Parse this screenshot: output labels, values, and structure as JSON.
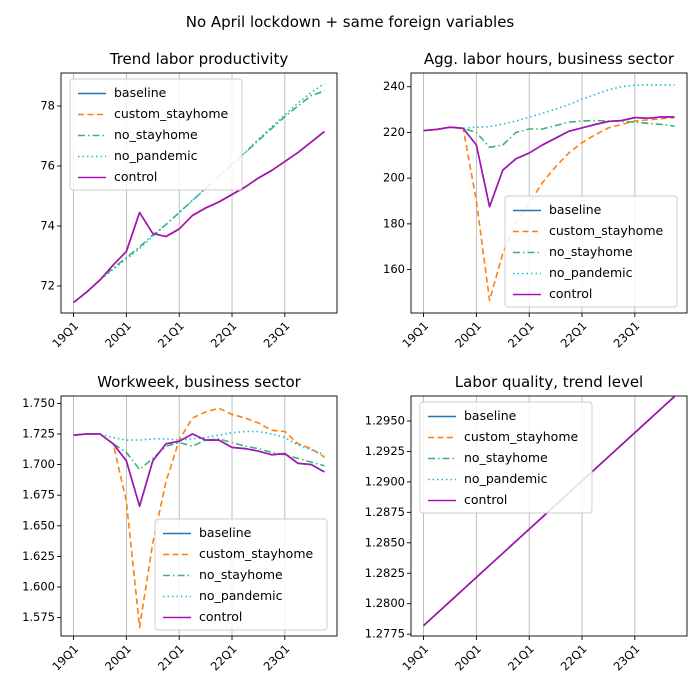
{
  "figure": {
    "suptitle": "No April lockdown + same foreign variables"
  },
  "colors": {
    "baseline": "#1f77b4",
    "custom_stayhome": "#ff7f0e",
    "no_stayhome": "#3cb371",
    "no_pandemic": "#17becf",
    "control": "#aa10b4",
    "grid": "#b0b0b0"
  },
  "chart_data": [
    {
      "type": "line",
      "title": "Trend labor productivity",
      "x": [
        0,
        1,
        2,
        3,
        4,
        5,
        6,
        7,
        8,
        9,
        10,
        11,
        12,
        13,
        14,
        15,
        16,
        17,
        18,
        19
      ],
      "xticks": [
        0,
        4,
        8,
        12,
        16
      ],
      "xtick_labels": [
        "19Q1",
        "20Q1",
        "21Q1",
        "22Q1",
        "23Q1"
      ],
      "xlim": [
        -0.95,
        19.95
      ],
      "ylim": [
        71.1,
        79.1
      ],
      "yticks": [
        72,
        74,
        76,
        78
      ],
      "ytick_labels": [
        "72",
        "74",
        "76",
        "78"
      ],
      "grid": "x",
      "legend": "upper left",
      "series": [
        {
          "name": "baseline",
          "style": "solid",
          "values": [
            71.45,
            71.8,
            72.2,
            72.7,
            73.15,
            74.45,
            73.75,
            73.65,
            73.9,
            74.35,
            74.6,
            74.8,
            75.05,
            75.3,
            75.6,
            75.85,
            76.15,
            76.45,
            76.8,
            77.15
          ]
        },
        {
          "name": "custom_stayhome",
          "style": "dashed",
          "values": [
            71.45,
            71.8,
            72.2,
            72.7,
            73.15,
            74.45,
            73.75,
            73.65,
            73.9,
            74.35,
            74.6,
            74.8,
            75.05,
            75.3,
            75.6,
            75.85,
            76.15,
            76.45,
            76.8,
            77.15
          ]
        },
        {
          "name": "no_stayhome",
          "style": "dashdot",
          "values": [
            71.45,
            71.8,
            72.2,
            72.6,
            72.95,
            73.3,
            73.7,
            74.05,
            74.45,
            74.85,
            75.25,
            75.65,
            76.05,
            76.45,
            76.85,
            77.25,
            77.65,
            78.0,
            78.35,
            78.5
          ]
        },
        {
          "name": "no_pandemic",
          "style": "dotted",
          "values": [
            71.45,
            71.8,
            72.2,
            72.55,
            72.9,
            73.25,
            73.65,
            74.05,
            74.45,
            74.85,
            75.25,
            75.65,
            76.05,
            76.45,
            76.9,
            77.3,
            77.7,
            78.1,
            78.45,
            78.75
          ]
        },
        {
          "name": "control",
          "style": "solid",
          "values": [
            71.45,
            71.8,
            72.2,
            72.7,
            73.15,
            74.45,
            73.75,
            73.65,
            73.9,
            74.35,
            74.6,
            74.8,
            75.05,
            75.3,
            75.6,
            75.85,
            76.15,
            76.45,
            76.8,
            77.15
          ]
        }
      ]
    },
    {
      "type": "line",
      "title": "Agg. labor hours, business sector",
      "x": [
        0,
        1,
        2,
        3,
        4,
        5,
        6,
        7,
        8,
        9,
        10,
        11,
        12,
        13,
        14,
        15,
        16,
        17,
        18,
        19
      ],
      "xticks": [
        0,
        4,
        8,
        12,
        16
      ],
      "xtick_labels": [
        "19Q1",
        "20Q1",
        "21Q1",
        "22Q1",
        "23Q1"
      ],
      "xlim": [
        -0.95,
        19.95
      ],
      "ylim": [
        141,
        246
      ],
      "yticks": [
        160,
        180,
        200,
        220,
        240
      ],
      "ytick_labels": [
        "160",
        "180",
        "200",
        "220",
        "240"
      ],
      "grid": "x",
      "legend": "lower right",
      "series": [
        {
          "name": "baseline",
          "style": "solid",
          "values": [
            220.8,
            221.3,
            222.3,
            221.8,
            214.5,
            187.5,
            203.5,
            208.5,
            211.0,
            214.5,
            217.5,
            220.5,
            222.0,
            223.5,
            224.8,
            225.2,
            226.5,
            226.2,
            226.8,
            226.8
          ]
        },
        {
          "name": "custom_stayhome",
          "style": "dashed",
          "values": [
            220.8,
            221.3,
            222.3,
            221.8,
            190.0,
            146.5,
            167.0,
            180.5,
            189.0,
            198.0,
            205.0,
            211.0,
            215.5,
            219.0,
            222.0,
            223.5,
            225.0,
            225.5,
            226.0,
            226.5
          ]
        },
        {
          "name": "no_stayhome",
          "style": "dashdot",
          "values": [
            220.8,
            221.3,
            222.3,
            221.8,
            220.0,
            213.5,
            214.5,
            220.0,
            221.5,
            221.5,
            223.0,
            224.5,
            225.0,
            225.2,
            225.0,
            224.8,
            224.5,
            224.0,
            223.5,
            222.8
          ]
        },
        {
          "name": "no_pandemic",
          "style": "dotted",
          "values": [
            220.8,
            221.3,
            222.3,
            221.8,
            222.3,
            222.5,
            223.7,
            225.0,
            226.7,
            228.3,
            230.2,
            232.2,
            234.5,
            236.6,
            238.6,
            240.0,
            240.6,
            240.8,
            240.8,
            240.8
          ]
        },
        {
          "name": "control",
          "style": "solid",
          "values": [
            220.8,
            221.3,
            222.3,
            221.8,
            214.5,
            187.5,
            203.5,
            208.5,
            211.0,
            214.5,
            217.5,
            220.5,
            222.0,
            223.5,
            224.8,
            225.2,
            226.5,
            226.2,
            226.8,
            226.8
          ]
        }
      ]
    },
    {
      "type": "line",
      "title": "Workweek, business sector",
      "x": [
        0,
        1,
        2,
        3,
        4,
        5,
        6,
        7,
        8,
        9,
        10,
        11,
        12,
        13,
        14,
        15,
        16,
        17,
        18,
        19
      ],
      "xticks": [
        0,
        4,
        8,
        12,
        16
      ],
      "xtick_labels": [
        "19Q1",
        "20Q1",
        "21Q1",
        "22Q1",
        "23Q1"
      ],
      "xlim": [
        -0.95,
        19.95
      ],
      "ylim": [
        1.56,
        1.756
      ],
      "yticks": [
        1.575,
        1.6,
        1.625,
        1.65,
        1.675,
        1.7,
        1.725,
        1.75
      ],
      "ytick_labels": [
        "1.575",
        "1.600",
        "1.625",
        "1.650",
        "1.675",
        "1.700",
        "1.725",
        "1.750"
      ],
      "grid": "x",
      "legend": "lower right",
      "series": [
        {
          "name": "baseline",
          "style": "solid",
          "values": [
            1.724,
            1.725,
            1.725,
            1.717,
            1.703,
            1.666,
            1.703,
            1.717,
            1.719,
            1.725,
            1.72,
            1.72,
            1.714,
            1.713,
            1.711,
            1.708,
            1.709,
            1.701,
            1.7,
            1.694
          ]
        },
        {
          "name": "custom_stayhome",
          "style": "dashed",
          "values": [
            1.724,
            1.725,
            1.725,
            1.717,
            1.67,
            1.567,
            1.636,
            1.686,
            1.72,
            1.738,
            1.743,
            1.746,
            1.741,
            1.738,
            1.734,
            1.728,
            1.727,
            1.717,
            1.713,
            1.706
          ]
        },
        {
          "name": "no_stayhome",
          "style": "dashdot",
          "values": [
            1.724,
            1.725,
            1.725,
            1.717,
            1.71,
            1.696,
            1.705,
            1.715,
            1.718,
            1.715,
            1.72,
            1.721,
            1.718,
            1.715,
            1.713,
            1.71,
            1.708,
            1.705,
            1.702,
            1.699
          ]
        },
        {
          "name": "no_pandemic",
          "style": "dotted",
          "values": [
            1.724,
            1.725,
            1.725,
            1.722,
            1.72,
            1.72,
            1.721,
            1.721,
            1.72,
            1.721,
            1.722,
            1.724,
            1.726,
            1.727,
            1.727,
            1.725,
            1.722,
            1.716,
            1.712,
            1.708
          ]
        },
        {
          "name": "control",
          "style": "solid",
          "values": [
            1.724,
            1.725,
            1.725,
            1.717,
            1.703,
            1.666,
            1.703,
            1.717,
            1.719,
            1.725,
            1.72,
            1.72,
            1.714,
            1.713,
            1.711,
            1.708,
            1.709,
            1.701,
            1.7,
            1.694
          ]
        }
      ]
    },
    {
      "type": "line",
      "title": "Labor quality, trend level",
      "x": [
        0,
        1,
        2,
        3,
        4,
        5,
        6,
        7,
        8,
        9,
        10,
        11,
        12,
        13,
        14,
        15,
        16,
        17,
        18,
        19
      ],
      "xticks": [
        0,
        4,
        8,
        12,
        16
      ],
      "xtick_labels": [
        "19Q1",
        "20Q1",
        "21Q1",
        "22Q1",
        "23Q1"
      ],
      "xlim": [
        -0.95,
        19.95
      ],
      "ylim": [
        1.27735,
        1.29705
      ],
      "yticks": [
        1.2775,
        1.28,
        1.2825,
        1.285,
        1.2875,
        1.29,
        1.2925,
        1.295
      ],
      "ytick_labels": [
        "1.2775",
        "1.2800",
        "1.2825",
        "1.2850",
        "1.2875",
        "1.2900",
        "1.2925",
        "1.2950"
      ],
      "grid": "x",
      "legend": "upper left",
      "series": [
        {
          "name": "baseline",
          "style": "solid",
          "values": [
            1.2782,
            1.27919,
            1.28018,
            1.28117,
            1.28216,
            1.28315,
            1.28414,
            1.28513,
            1.28612,
            1.28711,
            1.2881,
            1.28909,
            1.29008,
            1.29107,
            1.29206,
            1.29305,
            1.29404,
            1.29503,
            1.29602,
            1.29701
          ]
        },
        {
          "name": "custom_stayhome",
          "style": "dashed",
          "values": [
            1.2782,
            1.27919,
            1.28018,
            1.28117,
            1.28216,
            1.28315,
            1.28414,
            1.28513,
            1.28612,
            1.28711,
            1.2881,
            1.28909,
            1.29008,
            1.29107,
            1.29206,
            1.29305,
            1.29404,
            1.29503,
            1.29602,
            1.29701
          ]
        },
        {
          "name": "no_stayhome",
          "style": "dashdot",
          "values": [
            1.2782,
            1.27919,
            1.28018,
            1.28117,
            1.28216,
            1.28315,
            1.28414,
            1.28513,
            1.28612,
            1.28711,
            1.2881,
            1.28909,
            1.29008,
            1.29107,
            1.29206,
            1.29305,
            1.29404,
            1.29503,
            1.29602,
            1.29701
          ]
        },
        {
          "name": "no_pandemic",
          "style": "dotted",
          "values": [
            1.2782,
            1.27919,
            1.28018,
            1.28117,
            1.28216,
            1.28315,
            1.28414,
            1.28513,
            1.28612,
            1.28711,
            1.2881,
            1.28909,
            1.29008,
            1.29107,
            1.29206,
            1.29305,
            1.29404,
            1.29503,
            1.29602,
            1.29701
          ]
        },
        {
          "name": "control",
          "style": "solid",
          "values": [
            1.2782,
            1.27919,
            1.28018,
            1.28117,
            1.28216,
            1.28315,
            1.28414,
            1.28513,
            1.28612,
            1.28711,
            1.2881,
            1.28909,
            1.29008,
            1.29107,
            1.29206,
            1.29305,
            1.29404,
            1.29503,
            1.29602,
            1.29701
          ]
        }
      ]
    }
  ]
}
